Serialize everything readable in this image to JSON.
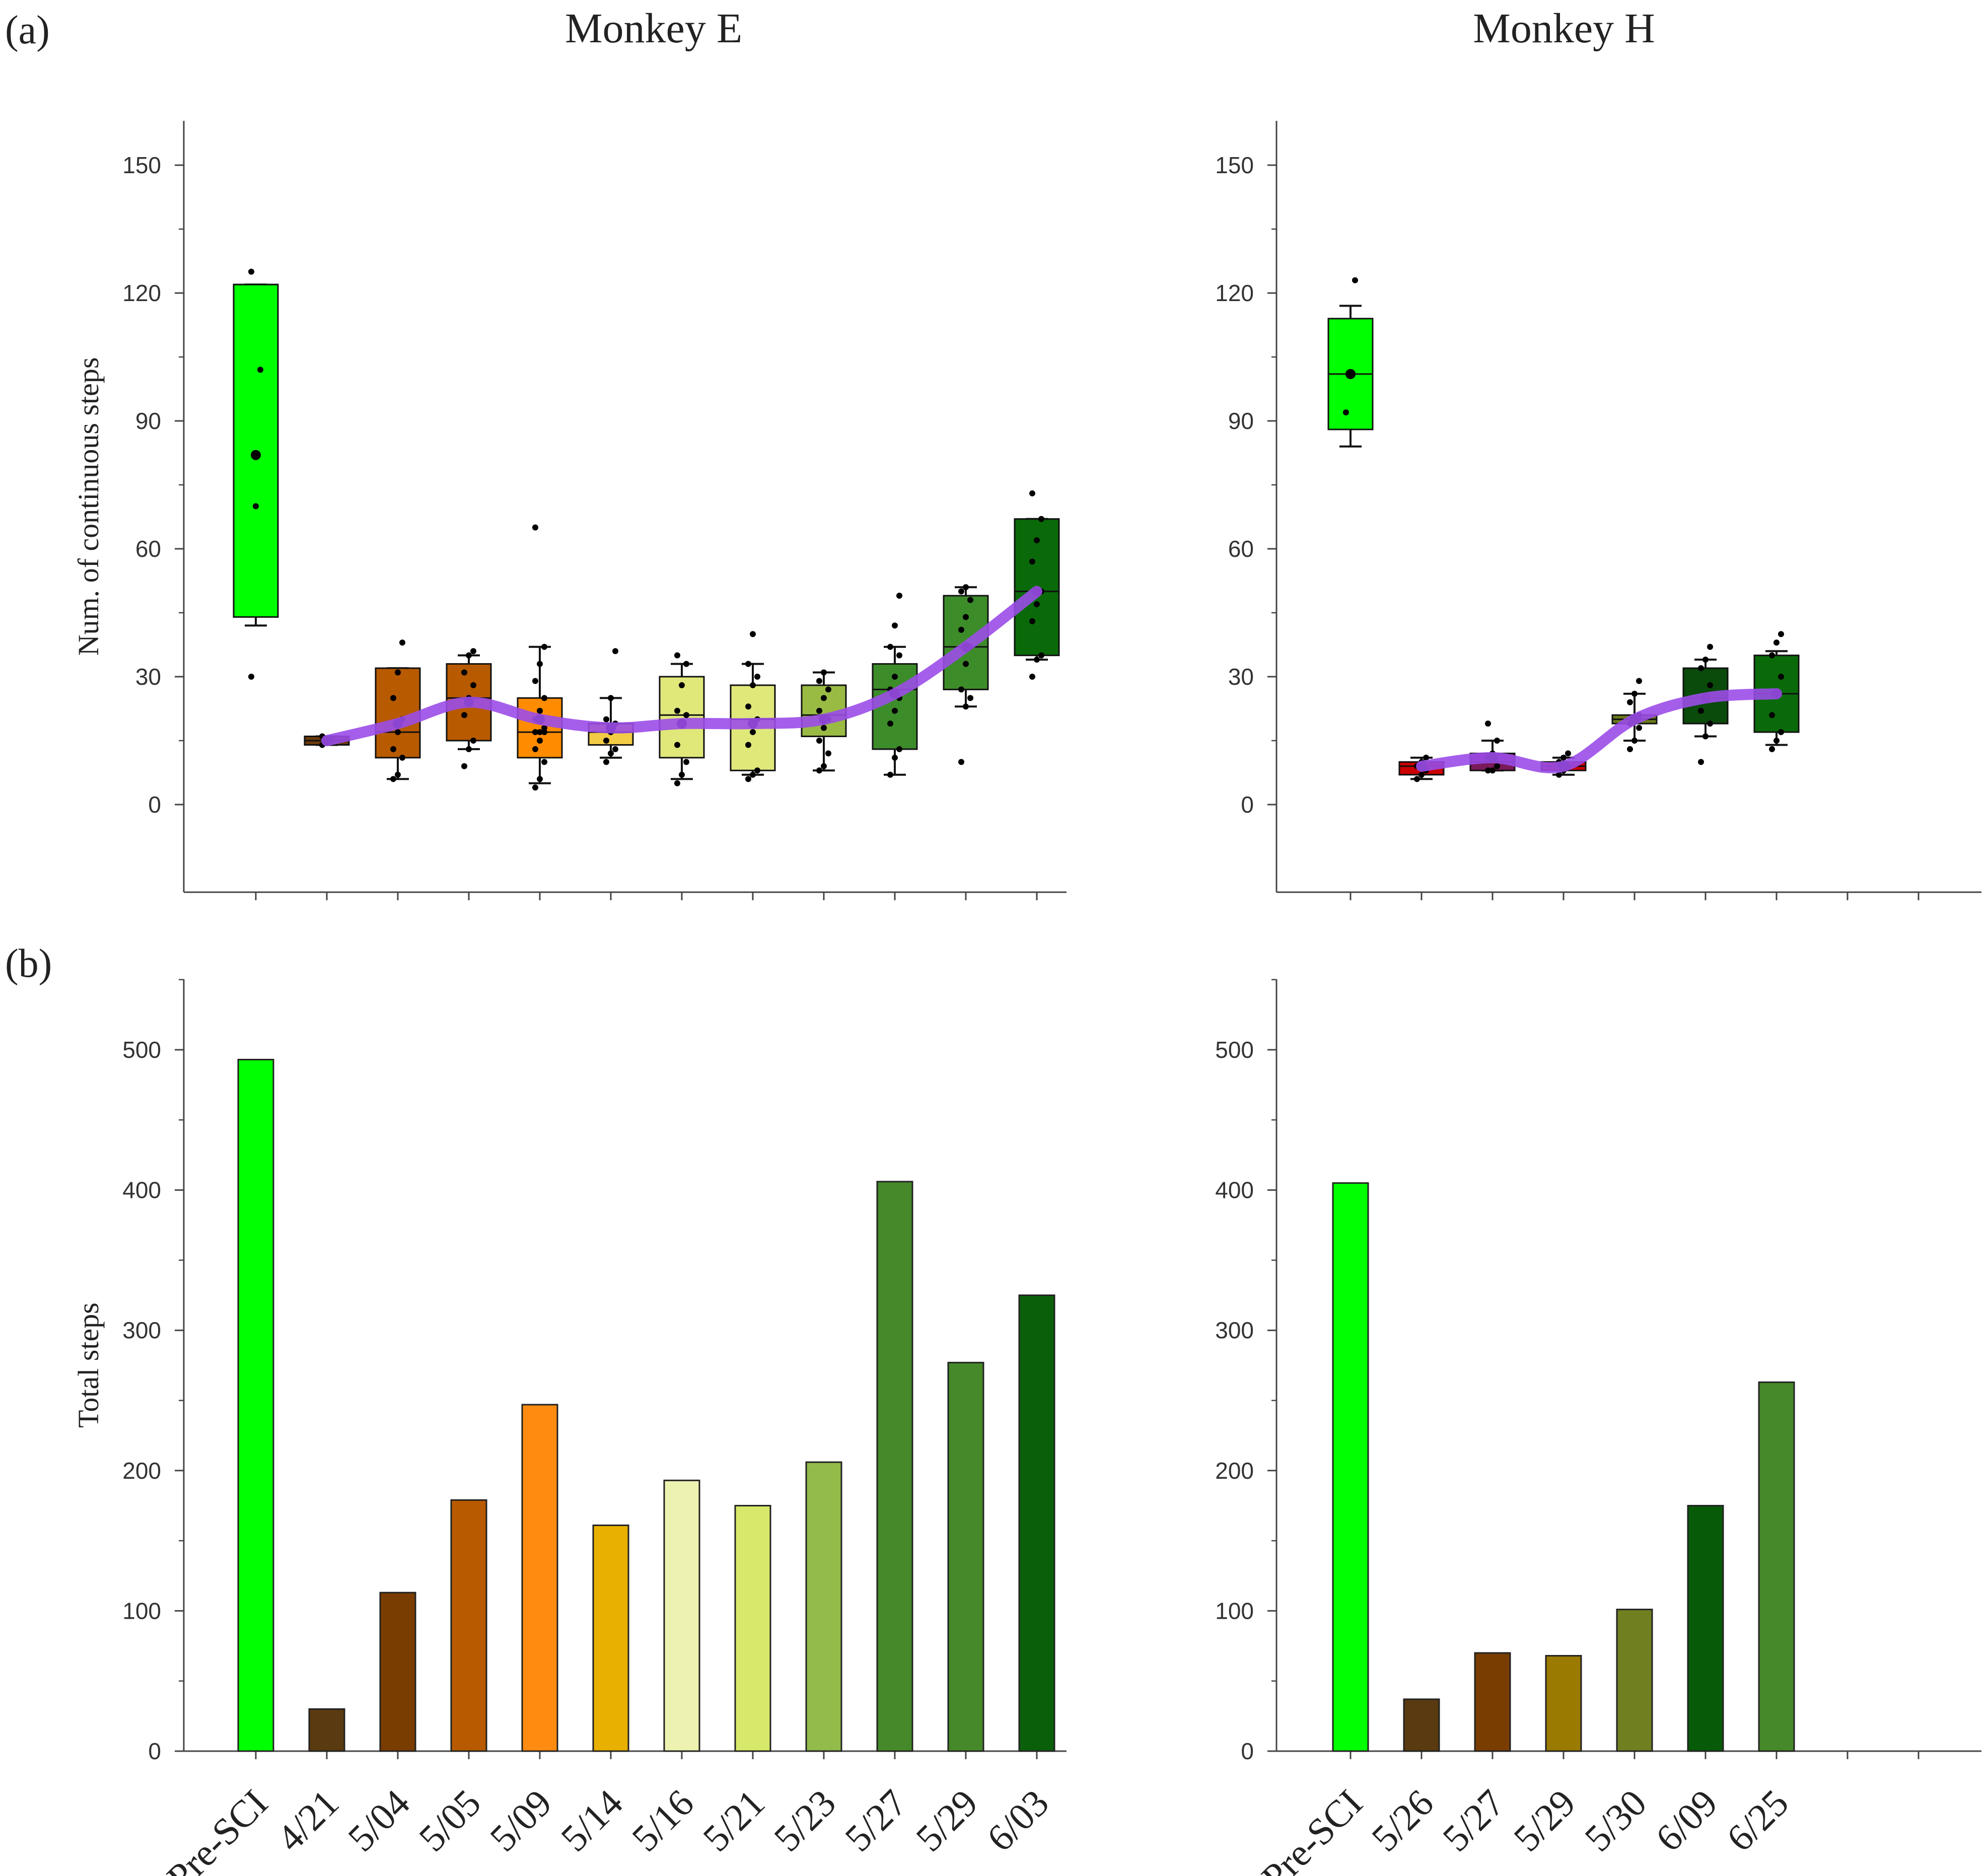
{
  "figure": {
    "panel_a_label": "(a)",
    "panel_b_label": "(b)",
    "title_left": "Monkey E",
    "title_right": "Monkey H"
  },
  "chart_data": [
    {
      "id": "E_box",
      "type": "box",
      "title": "Monkey E",
      "panel": "(a)",
      "ylabel": "Num. of continuous steps",
      "xlabel": "",
      "ylim": [
        -13,
        160
      ],
      "yticks": [
        0,
        30,
        60,
        90,
        120,
        150
      ],
      "n_slots": 12,
      "categories": [
        "Pre-SCI",
        "4/21",
        "5/04",
        "5/05",
        "5/09",
        "5/14",
        "5/16",
        "5/21",
        "5/23",
        "5/27",
        "5/29",
        "6/03"
      ],
      "colors": [
        "#00ff00",
        "#6b3a0a",
        "#b85a00",
        "#b85a00",
        "#ff8c00",
        "#f2cc44",
        "#e0e87a",
        "#e0e87a",
        "#99bb44",
        "#3d8c2a",
        "#3d8c2a",
        "#0a6a0a"
      ],
      "boxes": [
        {
          "q1": 44,
          "q3": 122,
          "median": 122,
          "whisker_low": 42,
          "whisker_high": 122,
          "mean": 82,
          "points": [
            30,
            70,
            102,
            125
          ]
        },
        {
          "q1": 14,
          "q3": 16,
          "median": 15,
          "whisker_low": 14,
          "whisker_high": 16,
          "mean": 15,
          "points": [
            14,
            15,
            15,
            16
          ]
        },
        {
          "q1": 11,
          "q3": 32,
          "median": 17,
          "whisker_low": 6,
          "whisker_high": 32,
          "mean": 19,
          "points": [
            6,
            7,
            11,
            13,
            17,
            20,
            25,
            31,
            38
          ]
        },
        {
          "q1": 15,
          "q3": 33,
          "median": 25,
          "whisker_low": 13,
          "whisker_high": 35,
          "mean": 24,
          "points": [
            9,
            13,
            15,
            21,
            25,
            28,
            31,
            35,
            36
          ]
        },
        {
          "q1": 11,
          "q3": 25,
          "median": 17,
          "whisker_low": 5,
          "whisker_high": 37,
          "mean": 20,
          "points": [
            4,
            6,
            10,
            13,
            15,
            17,
            17,
            17,
            18,
            20,
            22,
            25,
            29,
            33,
            37,
            65
          ]
        },
        {
          "q1": 14,
          "q3": 19,
          "median": 17,
          "whisker_low": 11,
          "whisker_high": 25,
          "mean": 18,
          "points": [
            10,
            12,
            13,
            15,
            17,
            19,
            20,
            25,
            36
          ]
        },
        {
          "q1": 11,
          "q3": 30,
          "median": 21,
          "whisker_low": 6,
          "whisker_high": 33,
          "mean": 19,
          "points": [
            5,
            7,
            10,
            14,
            19,
            21,
            22,
            28,
            33,
            35
          ]
        },
        {
          "q1": 8,
          "q3": 28,
          "median": 20,
          "whisker_low": 7,
          "whisker_high": 33,
          "mean": 19,
          "points": [
            6,
            7,
            8,
            14,
            17,
            20,
            23,
            28,
            30,
            33,
            40
          ]
        },
        {
          "q1": 16,
          "q3": 28,
          "median": 21,
          "whisker_low": 8,
          "whisker_high": 31,
          "mean": 20,
          "points": [
            8,
            9,
            12,
            15,
            18,
            20,
            22,
            25,
            27,
            29,
            31
          ]
        },
        {
          "q1": 13,
          "q3": 33,
          "median": 27,
          "whisker_low": 7,
          "whisker_high": 37,
          "mean": 26,
          "points": [
            7,
            11,
            13,
            19,
            22,
            25,
            27,
            30,
            35,
            37,
            42,
            49
          ]
        },
        {
          "q1": 27,
          "q3": 49,
          "median": 37,
          "whisker_low": 23,
          "whisker_high": 51,
          "mean": 37,
          "points": [
            10,
            23,
            25,
            27,
            33,
            37,
            41,
            44,
            48,
            50,
            51
          ]
        },
        {
          "q1": 35,
          "q3": 67,
          "median": 50,
          "whisker_low": 34,
          "whisker_high": 67,
          "mean": 50,
          "points": [
            30,
            34,
            35,
            43,
            47,
            50,
            57,
            62,
            67,
            73
          ]
        }
      ],
      "trend_line": {
        "color": "#9b4de8",
        "from_index": 1,
        "values": [
          15,
          19,
          24,
          20,
          18,
          19,
          19,
          20,
          26,
          37,
          50
        ]
      }
    },
    {
      "id": "H_box",
      "type": "box",
      "title": "Monkey H",
      "panel": "(a)",
      "ylabel": "",
      "xlabel": "",
      "ylim": [
        -13,
        160
      ],
      "yticks": [
        0,
        30,
        60,
        90,
        120,
        150
      ],
      "n_slots": 9,
      "categories": [
        "Pre-SCI",
        "5/26",
        "5/27",
        "5/29",
        "5/30",
        "6/09",
        "6/25"
      ],
      "colors": [
        "#00ff00",
        "#cc0000",
        "#7a1a5a",
        "#cc0000",
        "#6b7a1a",
        "#0a4a0a",
        "#0a6a0a"
      ],
      "boxes": [
        {
          "q1": 88,
          "q3": 114,
          "median": 101,
          "whisker_low": 84,
          "whisker_high": 117,
          "mean": 101,
          "points": [
            92,
            101,
            123
          ]
        },
        {
          "q1": 7,
          "q3": 10,
          "median": 9,
          "whisker_low": 6,
          "whisker_high": 11,
          "mean": 9,
          "points": [
            6,
            7,
            8,
            9,
            10,
            11
          ]
        },
        {
          "q1": 8,
          "q3": 12,
          "median": 10,
          "whisker_low": 8,
          "whisker_high": 15,
          "mean": 11,
          "points": [
            8,
            8,
            9,
            11,
            12,
            15,
            19
          ]
        },
        {
          "q1": 8,
          "q3": 10,
          "median": 9,
          "whisker_low": 7,
          "whisker_high": 11,
          "mean": 9,
          "points": [
            7,
            8,
            9,
            10,
            11,
            12
          ]
        },
        {
          "q1": 19,
          "q3": 21,
          "median": 20,
          "whisker_low": 15,
          "whisker_high": 26,
          "mean": 20,
          "points": [
            13,
            15,
            18,
            19,
            20,
            21,
            24,
            26,
            29
          ]
        },
        {
          "q1": 19,
          "q3": 32,
          "median": 25,
          "whisker_low": 16,
          "whisker_high": 34,
          "mean": 25,
          "points": [
            10,
            16,
            19,
            22,
            25,
            28,
            32,
            34,
            37
          ]
        },
        {
          "q1": 17,
          "q3": 35,
          "median": 26,
          "whisker_low": 14,
          "whisker_high": 36,
          "mean": 26,
          "points": [
            13,
            15,
            17,
            21,
            26,
            30,
            35,
            38,
            40
          ]
        }
      ],
      "trend_line": {
        "color": "#9b4de8",
        "from_index": 1,
        "values": [
          9,
          11,
          9,
          20,
          25,
          26
        ]
      }
    },
    {
      "id": "E_bar",
      "type": "bar",
      "title": "",
      "panel": "(b)",
      "ylabel": "Total  steps",
      "xlabel": "",
      "ylim": [
        0,
        550
      ],
      "yticks": [
        0,
        100,
        200,
        300,
        400,
        500
      ],
      "n_slots": 12,
      "categories": [
        "Pre-SCI",
        "4/21",
        "5/04",
        "5/05",
        "5/09",
        "5/14",
        "5/16",
        "5/21",
        "5/23",
        "5/27",
        "5/29",
        "6/03"
      ],
      "values": [
        493,
        30,
        113,
        179,
        247,
        161,
        193,
        175,
        206,
        406,
        277,
        325
      ],
      "colors": [
        "#00ff00",
        "#5a3a10",
        "#7a3d00",
        "#b85a00",
        "#ff8c10",
        "#e8b000",
        "#eef2b0",
        "#d8e86a",
        "#92bb4a",
        "#46892a",
        "#46892a",
        "#0a600a"
      ]
    },
    {
      "id": "H_bar",
      "type": "bar",
      "title": "",
      "panel": "(b)",
      "ylabel": "",
      "xlabel": "",
      "ylim": [
        0,
        550
      ],
      "yticks": [
        0,
        100,
        200,
        300,
        400,
        500
      ],
      "n_slots": 9,
      "categories": [
        "Pre-SCI",
        "5/26",
        "5/27",
        "5/29",
        "5/30",
        "6/09",
        "6/25"
      ],
      "values": [
        405,
        37,
        70,
        68,
        101,
        175,
        263
      ],
      "colors": [
        "#00ff00",
        "#5a3a10",
        "#7a3d00",
        "#9a7a00",
        "#708020",
        "#075a07",
        "#46892a"
      ]
    }
  ]
}
